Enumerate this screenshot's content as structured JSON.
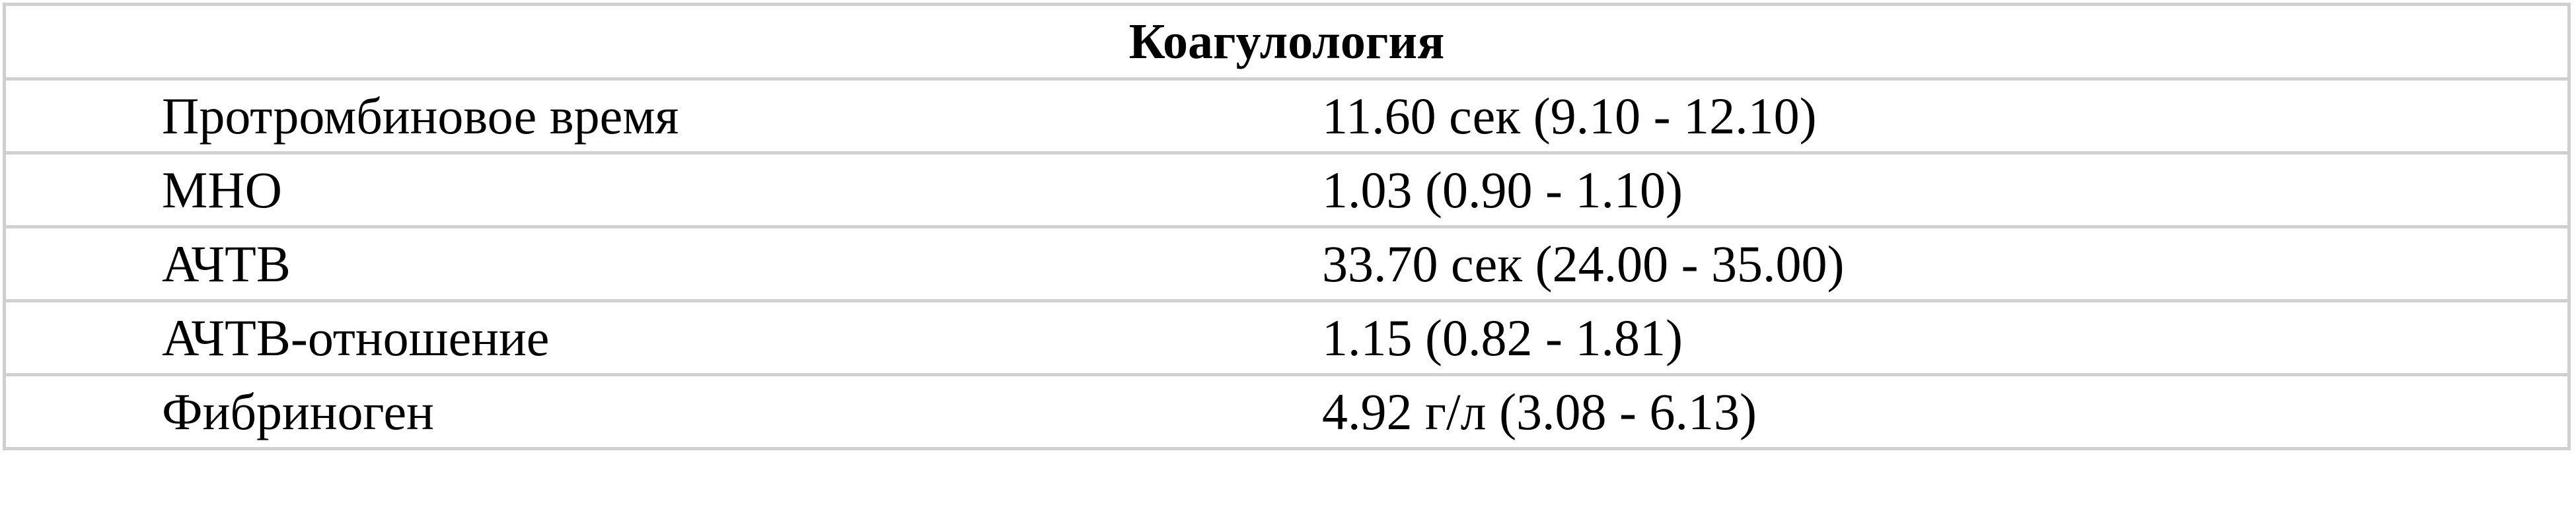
{
  "table": {
    "title": "Коагулология",
    "rows": [
      [
        "Протромбиновое время",
        "11.60 сек (9.10 - 12.10)"
      ],
      [
        "МНО",
        "1.03 (0.90 - 1.10)"
      ],
      [
        "АЧТВ",
        "33.70 сек (24.00 - 35.00)"
      ],
      [
        "АЧТВ-отношение",
        "1.15 (0.82 - 1.81)"
      ],
      [
        "Фибриноген",
        "4.92 г/л (3.08 - 6.13)"
      ]
    ]
  }
}
